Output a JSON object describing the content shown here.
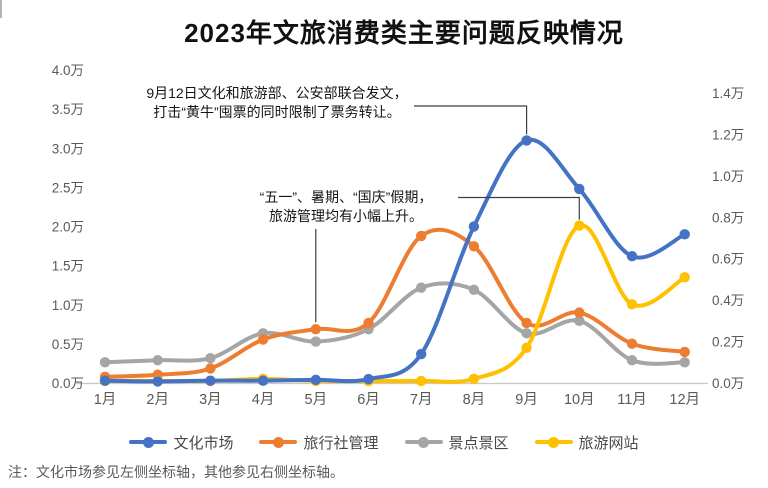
{
  "title": "2023年文旅消费类主要问题反映情况",
  "note": "注：文化市场参见左侧坐标轴，其他参见右侧坐标轴。",
  "chart_data": {
    "type": "line",
    "title": "2023年文旅消费类主要问题反映情况",
    "categories": [
      "1月",
      "2月",
      "3月",
      "4月",
      "5月",
      "6月",
      "7月",
      "8月",
      "9月",
      "10月",
      "11月",
      "12月"
    ],
    "unit": "万",
    "axes": {
      "left": {
        "ticks": [
          "0.0万",
          "0.5万",
          "1.0万",
          "1.5万",
          "2.0万",
          "2.5万",
          "3.0万",
          "3.5万",
          "4.0万"
        ],
        "min": 0,
        "max": 4.0,
        "applies_to": "文化市场"
      },
      "right": {
        "ticks": [
          "0.0万",
          "0.2万",
          "0.4万",
          "0.6万",
          "0.8万",
          "1.0万",
          "1.2万",
          "1.4万"
        ],
        "min": 0,
        "max": 1.4,
        "applies_to": "旅行社管理 / 景点景区 / 旅游网站"
      }
    },
    "grid": false,
    "legend_position": "bottom",
    "render_order": [
      2,
      1,
      3,
      0
    ],
    "series": [
      {
        "name": "文化市场",
        "key": "culture-market",
        "axis": "left",
        "color": "#4472C4",
        "values": [
          0.03,
          0.02,
          0.03,
          0.03,
          0.04,
          0.05,
          0.37,
          2.0,
          3.1,
          2.48,
          1.62,
          1.9
        ]
      },
      {
        "name": "旅行社管理",
        "key": "travel-agency",
        "axis": "right",
        "color": "#ED7D31",
        "values": [
          0.03,
          0.04,
          0.07,
          0.21,
          0.26,
          0.29,
          0.71,
          0.66,
          0.29,
          0.34,
          0.19,
          0.15
        ]
      },
      {
        "name": "景点景区",
        "key": "scenic-spots",
        "axis": "right",
        "color": "#A5A5A5",
        "values": [
          0.1,
          0.11,
          0.12,
          0.24,
          0.2,
          0.26,
          0.46,
          0.45,
          0.24,
          0.3,
          0.11,
          0.1
        ]
      },
      {
        "name": "旅游网站",
        "key": "travel-websites",
        "axis": "right",
        "color": "#FFC000",
        "values": [
          0.01,
          0.01,
          0.01,
          0.02,
          0.01,
          0.01,
          0.01,
          0.02,
          0.17,
          0.76,
          0.38,
          0.51
        ]
      }
    ],
    "annotations": [
      {
        "lines": [
          "9月12日文化和旅游部、公安部联合发文，",
          "打击“黄牛”囤票的同时限制了票务转让。"
        ],
        "points_to": "文化市场 9月峰值"
      },
      {
        "lines": [
          "“五一”、暑期、“国庆”假期，",
          "旅游管理均有小幅上升。"
        ],
        "points_to": "旅行社管理 5月 / 旅游网站 10月峰值"
      }
    ]
  }
}
